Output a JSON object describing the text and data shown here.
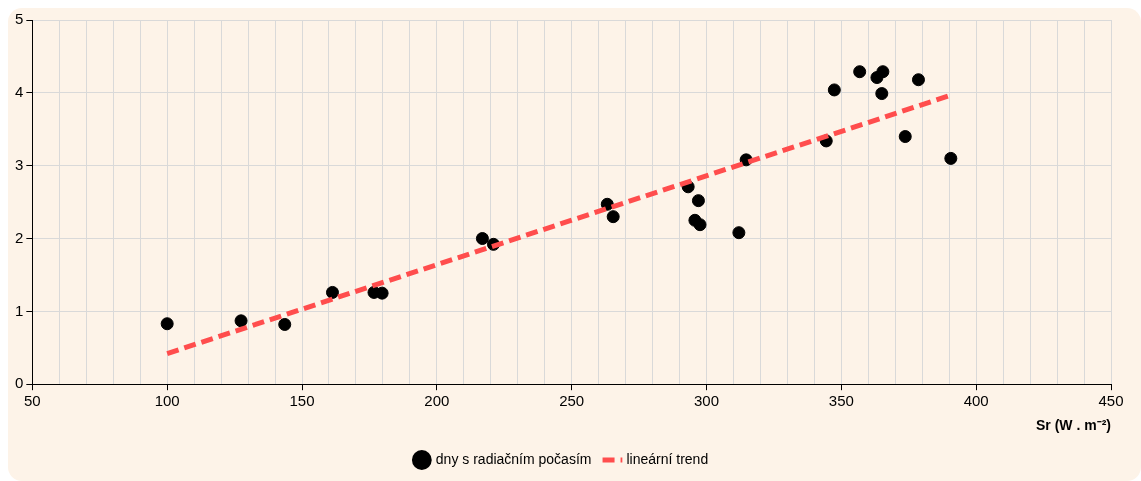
{
  "chart_data": {
    "type": "scatter",
    "xlabel": "Sr (W . m⁻²)",
    "xlim": [
      50,
      450
    ],
    "ylim": [
      0,
      5
    ],
    "xticks": [
      50,
      {
        "value": 60,
        "label": null
      },
      {
        "value": 70,
        "label": null
      },
      {
        "value": 80,
        "label": null
      },
      {
        "value": 90,
        "label": null
      },
      100,
      {
        "value": 110,
        "label": null
      },
      {
        "value": 120,
        "label": null
      },
      {
        "value": 130,
        "label": null
      },
      {
        "value": 140,
        "label": null
      },
      150,
      {
        "value": 160,
        "label": null
      },
      {
        "value": 170,
        "label": null
      },
      {
        "value": 180,
        "label": null
      },
      {
        "value": 190,
        "label": null
      },
      200,
      {
        "value": 210,
        "label": null
      },
      {
        "value": 220,
        "label": null
      },
      {
        "value": 230,
        "label": null
      },
      {
        "value": 240,
        "label": null
      },
      250,
      {
        "value": 260,
        "label": null
      },
      {
        "value": 270,
        "label": null
      },
      {
        "value": 280,
        "label": null
      },
      {
        "value": 290,
        "label": null
      },
      300,
      {
        "value": 310,
        "label": null
      },
      {
        "value": 320,
        "label": null
      },
      {
        "value": 330,
        "label": null
      },
      {
        "value": 340,
        "label": null
      },
      350,
      {
        "value": 360,
        "label": null
      },
      {
        "value": 370,
        "label": null
      },
      {
        "value": 380,
        "label": null
      },
      {
        "value": 390,
        "label": null
      },
      400,
      {
        "value": 410,
        "label": null
      },
      {
        "value": 420,
        "label": null
      },
      {
        "value": 430,
        "label": null
      },
      {
        "value": 440,
        "label": null
      },
      450
    ],
    "yticks": [
      0,
      1,
      2,
      3,
      4,
      5
    ],
    "grid": true,
    "legend": "bottom",
    "marker": "circle",
    "series": [
      {
        "name": "dny s radiačním počasím",
        "color": "#000000",
        "x": [
          100,
          127.4,
          143.6,
          161.3,
          176.7,
          179.7,
          216.9,
          221,
          263.2,
          265.4,
          293.2,
          297,
          295.7,
          297.6,
          312,
          314.7,
          344.4,
          347.4,
          356.8,
          363.2,
          365.4,
          365,
          373.7,
          378.6,
          390.6
        ],
        "values": [
          0.83,
          0.87,
          0.82,
          1.26,
          1.26,
          1.25,
          2.0,
          1.92,
          2.47,
          2.3,
          2.71,
          2.52,
          2.25,
          2.19,
          2.08,
          3.08,
          3.34,
          4.04,
          4.29,
          4.21,
          4.29,
          3.99,
          3.4,
          4.18,
          3.1
        ]
      },
      {
        "name": "lineární trend",
        "type": "line",
        "color": "#ff4d4d",
        "line_style": "dashed",
        "marker": "none",
        "x": [
          100,
          390
        ],
        "values": [
          0.42,
          3.96
        ]
      }
    ]
  }
}
